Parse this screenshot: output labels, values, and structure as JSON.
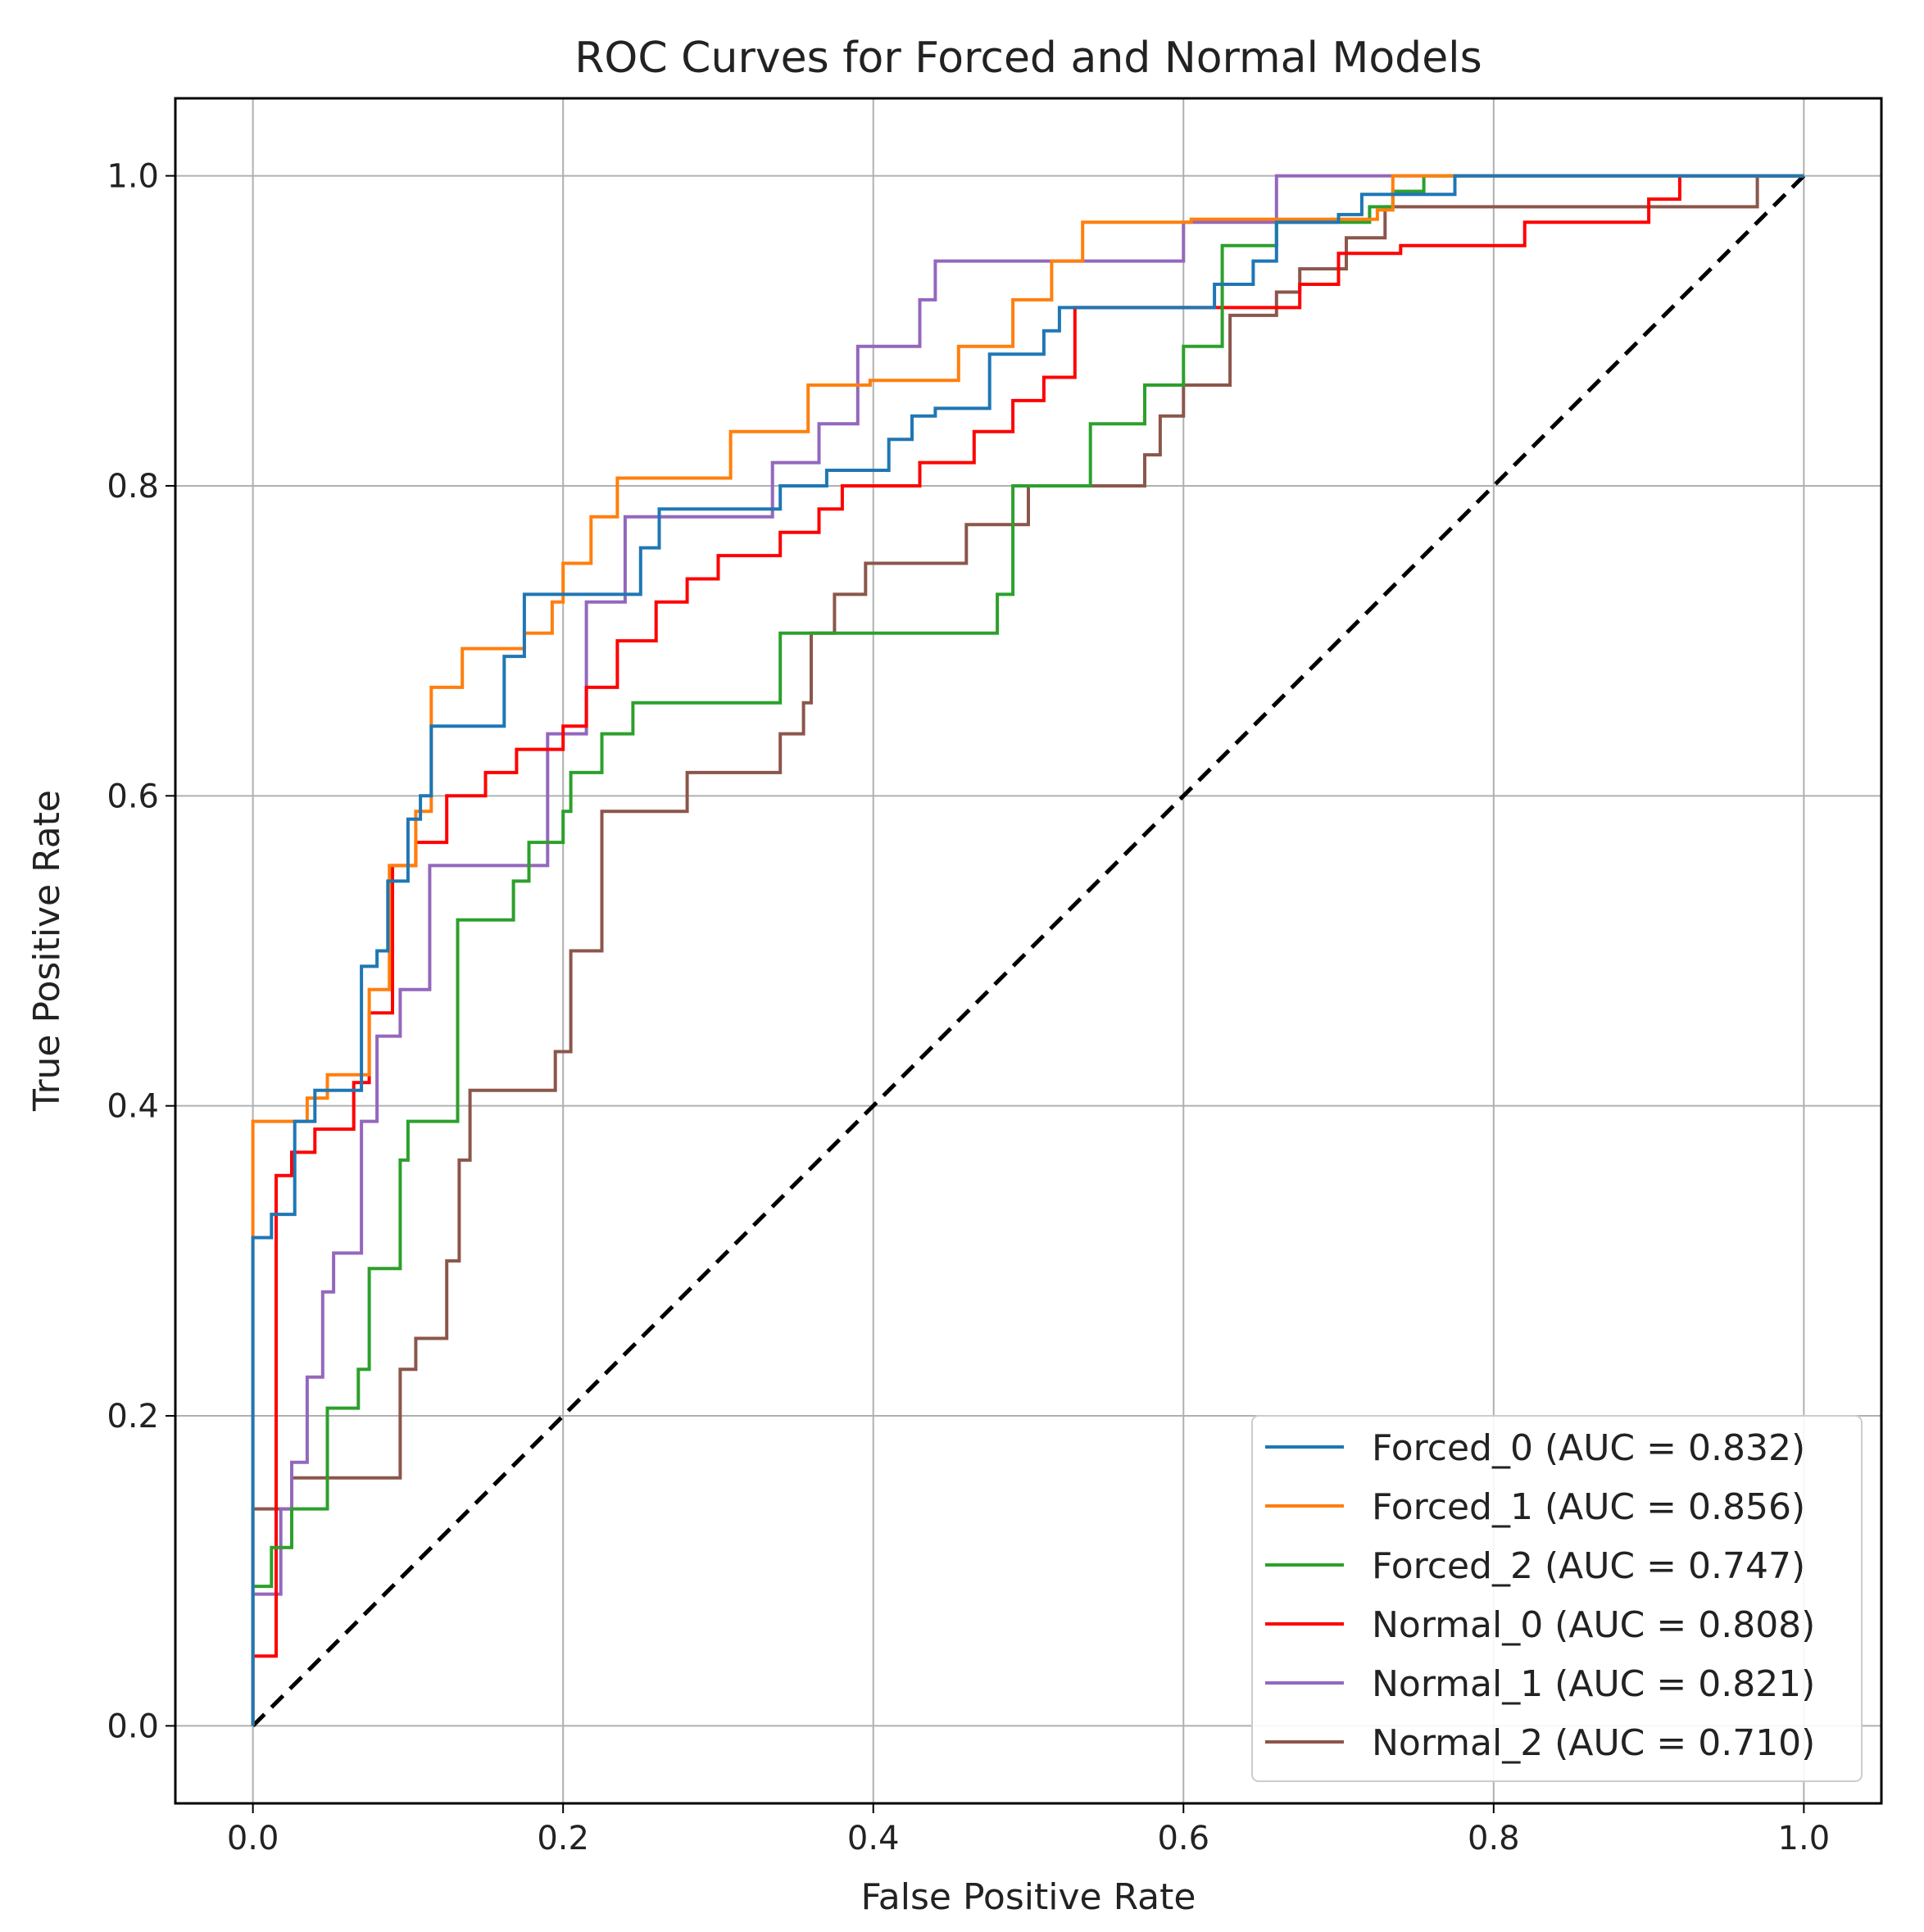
{
  "chart_data": {
    "type": "line",
    "title": "ROC Curves for Forced and Normal Models",
    "xlabel": "False Positive Rate",
    "ylabel": "True Positive Rate",
    "xlim": [
      -0.05,
      1.05
    ],
    "ylim": [
      -0.05,
      1.05
    ],
    "grid": true,
    "legend_position": "lower-right",
    "x_ticks": [
      0.0,
      0.2,
      0.4,
      0.6,
      0.8,
      1.0
    ],
    "x_tick_labels": [
      "0.0",
      "0.2",
      "0.4",
      "0.6",
      "0.8",
      "1.0"
    ],
    "y_ticks": [
      0.0,
      0.2,
      0.4,
      0.6,
      0.8,
      1.0
    ],
    "y_tick_labels": [
      "0.0",
      "0.2",
      "0.4",
      "0.6",
      "0.8",
      "1.0"
    ],
    "reference_line": {
      "name": "chance",
      "x": [
        0,
        1
      ],
      "y": [
        0,
        1
      ],
      "color": "#000000",
      "style": "dashed"
    },
    "series": [
      {
        "name": "Forced_0 (AUC = 0.832)",
        "color": "#1f77b4",
        "x": [
          0,
          0,
          0.012,
          0.012,
          0.027,
          0.027,
          0.04,
          0.04,
          0.07,
          0.07,
          0.08,
          0.08,
          0.087,
          0.087,
          0.1,
          0.1,
          0.108,
          0.108,
          0.115,
          0.115,
          0.162,
          0.162,
          0.175,
          0.175,
          0.25,
          0.25,
          0.262,
          0.262,
          0.34,
          0.34,
          0.37,
          0.37,
          0.41,
          0.41,
          0.425,
          0.425,
          0.44,
          0.44,
          0.475,
          0.475,
          0.51,
          0.51,
          0.52,
          0.52,
          0.62,
          0.62,
          0.645,
          0.645,
          0.66,
          0.66,
          0.7,
          0.7,
          0.715,
          0.715,
          0.755,
          0.755,
          0.775,
          0.775,
          1.0
        ],
        "y": [
          0,
          0.315,
          0.315,
          0.33,
          0.33,
          0.39,
          0.39,
          0.41,
          0.41,
          0.49,
          0.49,
          0.5,
          0.5,
          0.545,
          0.545,
          0.585,
          0.585,
          0.6,
          0.6,
          0.645,
          0.645,
          0.69,
          0.69,
          0.73,
          0.73,
          0.76,
          0.76,
          0.785,
          0.785,
          0.8,
          0.8,
          0.81,
          0.81,
          0.83,
          0.83,
          0.845,
          0.845,
          0.85,
          0.85,
          0.885,
          0.885,
          0.9,
          0.9,
          0.915,
          0.915,
          0.93,
          0.93,
          0.945,
          0.945,
          0.97,
          0.97,
          0.975,
          0.975,
          0.988,
          0.988,
          0.988,
          0.988,
          1.0,
          1.0
        ]
      },
      {
        "name": "Forced_1 (AUC = 0.856)",
        "color": "#ff7f0e",
        "x": [
          0,
          0,
          0.035,
          0.035,
          0.048,
          0.048,
          0.075,
          0.075,
          0.088,
          0.088,
          0.105,
          0.105,
          0.115,
          0.115,
          0.135,
          0.135,
          0.175,
          0.175,
          0.193,
          0.193,
          0.2,
          0.2,
          0.218,
          0.218,
          0.235,
          0.235,
          0.308,
          0.308,
          0.358,
          0.358,
          0.398,
          0.398,
          0.455,
          0.455,
          0.49,
          0.49,
          0.515,
          0.515,
          0.535,
          0.535,
          0.605,
          0.605,
          0.725,
          0.725,
          0.735,
          0.735,
          1.0
        ],
        "y": [
          0,
          0.39,
          0.39,
          0.405,
          0.405,
          0.42,
          0.42,
          0.475,
          0.475,
          0.555,
          0.555,
          0.59,
          0.59,
          0.67,
          0.67,
          0.695,
          0.695,
          0.705,
          0.705,
          0.725,
          0.725,
          0.75,
          0.75,
          0.78,
          0.78,
          0.805,
          0.805,
          0.835,
          0.835,
          0.865,
          0.865,
          0.868,
          0.868,
          0.89,
          0.89,
          0.92,
          0.92,
          0.945,
          0.945,
          0.97,
          0.97,
          0.972,
          0.972,
          0.978,
          0.978,
          1.0,
          1.0
        ]
      },
      {
        "name": "Forced_2 (AUC = 0.747)",
        "color": "#2ca02c",
        "x": [
          0,
          0,
          0.012,
          0.012,
          0.025,
          0.025,
          0.048,
          0.048,
          0.068,
          0.068,
          0.075,
          0.075,
          0.095,
          0.095,
          0.1,
          0.1,
          0.132,
          0.132,
          0.168,
          0.168,
          0.178,
          0.178,
          0.2,
          0.2,
          0.205,
          0.205,
          0.225,
          0.225,
          0.245,
          0.245,
          0.34,
          0.34,
          0.36,
          0.36,
          0.48,
          0.48,
          0.49,
          0.49,
          0.51,
          0.51,
          0.54,
          0.54,
          0.575,
          0.575,
          0.6,
          0.6,
          0.625,
          0.625,
          0.66,
          0.66,
          0.72,
          0.72,
          0.735,
          0.735,
          0.755,
          0.755,
          1.0
        ],
        "y": [
          0,
          0.09,
          0.09,
          0.115,
          0.115,
          0.14,
          0.14,
          0.205,
          0.205,
          0.23,
          0.23,
          0.295,
          0.295,
          0.365,
          0.365,
          0.39,
          0.39,
          0.52,
          0.52,
          0.545,
          0.545,
          0.57,
          0.57,
          0.59,
          0.59,
          0.615,
          0.615,
          0.64,
          0.64,
          0.66,
          0.66,
          0.705,
          0.705,
          0.705,
          0.705,
          0.73,
          0.73,
          0.8,
          0.8,
          0.8,
          0.8,
          0.84,
          0.84,
          0.865,
          0.865,
          0.89,
          0.89,
          0.955,
          0.955,
          0.97,
          0.97,
          0.98,
          0.98,
          0.99,
          0.99,
          1.0,
          1.0
        ]
      },
      {
        "name": "Normal_0 (AUC = 0.808)",
        "color": "#ff0000",
        "x": [
          0,
          0,
          0.015,
          0.015,
          0.025,
          0.025,
          0.04,
          0.04,
          0.065,
          0.065,
          0.075,
          0.075,
          0.09,
          0.09,
          0.105,
          0.105,
          0.125,
          0.125,
          0.15,
          0.15,
          0.17,
          0.17,
          0.2,
          0.2,
          0.215,
          0.215,
          0.235,
          0.235,
          0.26,
          0.26,
          0.28,
          0.28,
          0.3,
          0.3,
          0.34,
          0.34,
          0.365,
          0.365,
          0.38,
          0.38,
          0.43,
          0.43,
          0.465,
          0.465,
          0.49,
          0.49,
          0.51,
          0.51,
          0.53,
          0.53,
          0.66,
          0.66,
          0.675,
          0.675,
          0.7,
          0.7,
          0.74,
          0.74,
          0.82,
          0.82,
          0.9,
          0.9,
          0.92,
          0.92,
          1.0
        ],
        "y": [
          0,
          0.045,
          0.045,
          0.355,
          0.355,
          0.37,
          0.37,
          0.385,
          0.385,
          0.415,
          0.415,
          0.46,
          0.46,
          0.555,
          0.555,
          0.57,
          0.57,
          0.6,
          0.6,
          0.615,
          0.615,
          0.63,
          0.63,
          0.645,
          0.645,
          0.67,
          0.67,
          0.7,
          0.7,
          0.725,
          0.725,
          0.74,
          0.74,
          0.755,
          0.755,
          0.77,
          0.77,
          0.785,
          0.785,
          0.8,
          0.8,
          0.815,
          0.815,
          0.835,
          0.835,
          0.855,
          0.855,
          0.87,
          0.87,
          0.915,
          0.915,
          0.915,
          0.915,
          0.93,
          0.93,
          0.95,
          0.95,
          0.955,
          0.955,
          0.97,
          0.97,
          0.985,
          0.985,
          1.0,
          1.0
        ]
      },
      {
        "name": "Normal_1 (AUC = 0.821)",
        "color": "#9467bd",
        "x": [
          0,
          0,
          0.018,
          0.018,
          0.025,
          0.025,
          0.035,
          0.035,
          0.045,
          0.045,
          0.052,
          0.052,
          0.07,
          0.07,
          0.08,
          0.08,
          0.095,
          0.095,
          0.114,
          0.114,
          0.175,
          0.175,
          0.19,
          0.19,
          0.215,
          0.215,
          0.24,
          0.24,
          0.295,
          0.295,
          0.335,
          0.335,
          0.365,
          0.365,
          0.39,
          0.39,
          0.43,
          0.43,
          0.44,
          0.44,
          0.505,
          0.505,
          0.6,
          0.6,
          0.66,
          0.66,
          1.0
        ],
        "y": [
          0,
          0.085,
          0.085,
          0.14,
          0.14,
          0.17,
          0.17,
          0.225,
          0.225,
          0.28,
          0.28,
          0.305,
          0.305,
          0.39,
          0.39,
          0.445,
          0.445,
          0.475,
          0.475,
          0.555,
          0.555,
          0.555,
          0.555,
          0.64,
          0.64,
          0.725,
          0.725,
          0.78,
          0.78,
          0.78,
          0.78,
          0.815,
          0.815,
          0.84,
          0.84,
          0.89,
          0.89,
          0.92,
          0.92,
          0.945,
          0.945,
          0.945,
          0.945,
          0.97,
          0.97,
          1.0,
          1.0
        ]
      },
      {
        "name": "Normal_2 (AUC = 0.710)",
        "color": "#8c564b",
        "x": [
          0,
          0,
          0.025,
          0.025,
          0.095,
          0.095,
          0.105,
          0.105,
          0.125,
          0.125,
          0.133,
          0.133,
          0.14,
          0.14,
          0.195,
          0.195,
          0.205,
          0.205,
          0.225,
          0.225,
          0.28,
          0.28,
          0.34,
          0.34,
          0.355,
          0.355,
          0.36,
          0.36,
          0.375,
          0.375,
          0.395,
          0.395,
          0.46,
          0.46,
          0.5,
          0.5,
          0.575,
          0.575,
          0.585,
          0.585,
          0.6,
          0.6,
          0.63,
          0.63,
          0.66,
          0.66,
          0.675,
          0.675,
          0.705,
          0.705,
          0.73,
          0.73,
          0.97,
          0.97,
          1.0
        ],
        "y": [
          0,
          0.14,
          0.14,
          0.16,
          0.16,
          0.23,
          0.23,
          0.25,
          0.25,
          0.3,
          0.3,
          0.365,
          0.365,
          0.41,
          0.41,
          0.435,
          0.435,
          0.5,
          0.5,
          0.59,
          0.59,
          0.615,
          0.615,
          0.64,
          0.64,
          0.66,
          0.66,
          0.705,
          0.705,
          0.73,
          0.73,
          0.75,
          0.75,
          0.775,
          0.775,
          0.8,
          0.8,
          0.82,
          0.82,
          0.845,
          0.845,
          0.865,
          0.865,
          0.91,
          0.91,
          0.925,
          0.925,
          0.94,
          0.94,
          0.96,
          0.96,
          0.98,
          0.98,
          1.0,
          1.0
        ]
      }
    ]
  }
}
